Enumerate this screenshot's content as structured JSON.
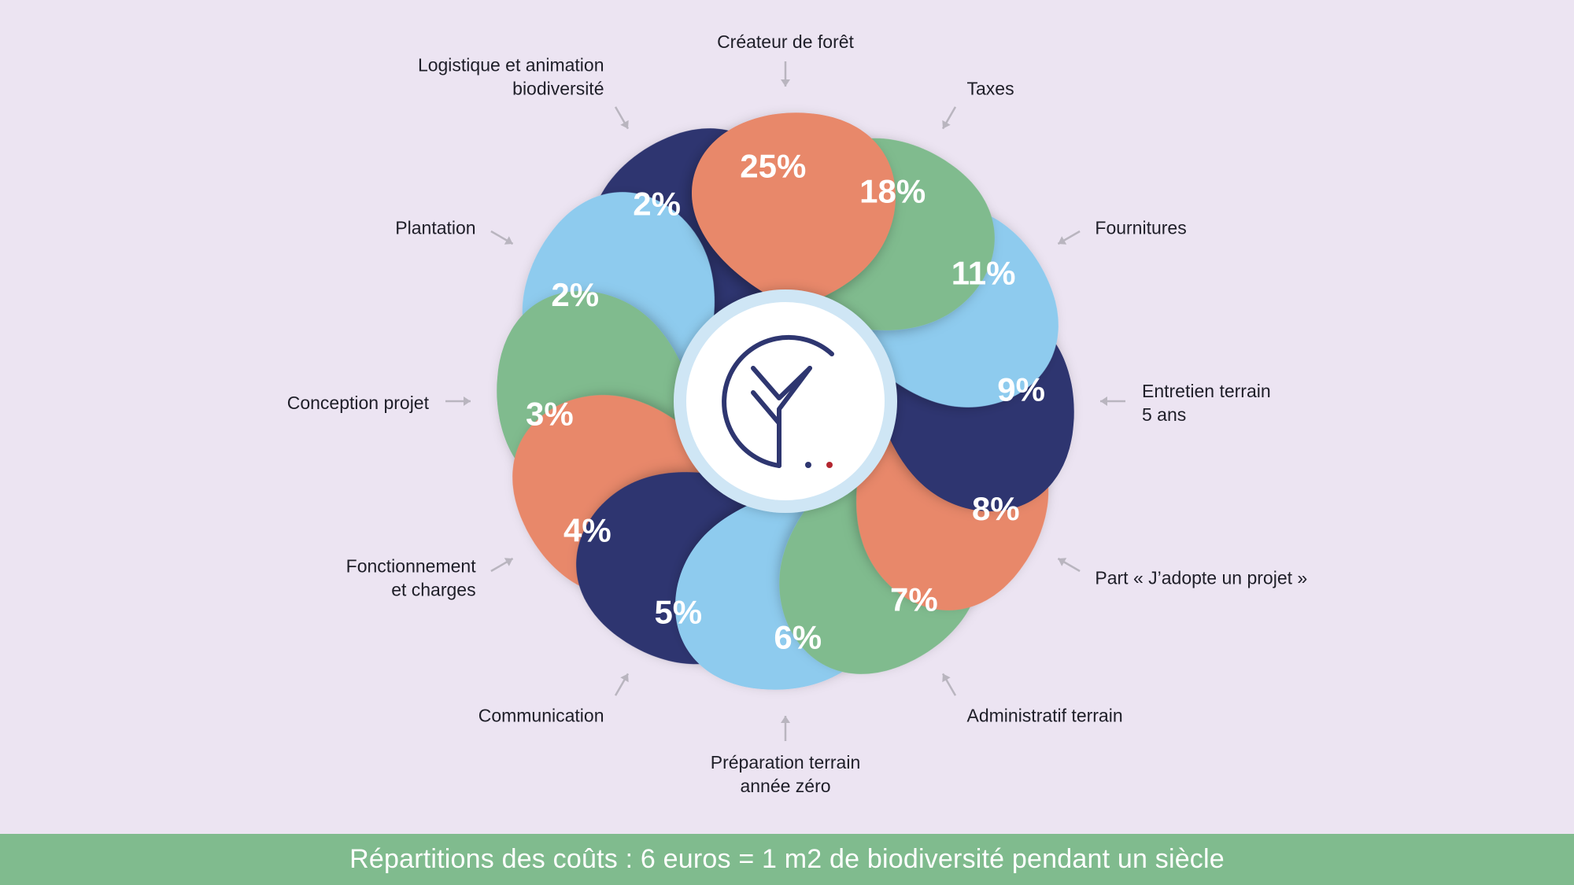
{
  "chart_data": {
    "type": "pie",
    "categories": [
      "Créateur de forêt",
      "Taxes",
      "Fournitures",
      "Entretien terrain\n5 ans",
      "Part « J’adopte un projet »",
      "Administratif terrain",
      "Préparation terrain\nannée zéro",
      "Communication",
      "Fonctionnement\net charges",
      "Conception projet",
      "Plantation",
      "Logistique et animation\nbiodiversité"
    ],
    "values": [
      25,
      18,
      11,
      9,
      8,
      7,
      6,
      5,
      4,
      3,
      2,
      2
    ],
    "value_labels": [
      "25%",
      "18%",
      "11%",
      "9%",
      "8%",
      "7%",
      "6%",
      "5%",
      "4%",
      "3%",
      "2%",
      "2%"
    ],
    "colors": [
      "#e8886a",
      "#80bb8e",
      "#8ecbee",
      "#2e3670",
      "#e8886a",
      "#80bb8e",
      "#8ecbee",
      "#2e3670",
      "#e8886a",
      "#80bb8e",
      "#8ecbee",
      "#2e3670"
    ],
    "title": "Répartitions des coûts : 6 euros = 1 m2 de biodiversité pendant un siècle"
  },
  "footer": {
    "caption": "Répartitions des coûts : 6 euros = 1 m2 de biodiversité pendant un siècle"
  },
  "logo": {
    "icon": "forest-logo-icon",
    "line_color": "#2e3670",
    "dot_colors": [
      "#2e3670",
      "#b3262f"
    ]
  },
  "colors": {
    "background": "#ece4f2",
    "footer": "#80bb8e",
    "arrow": "#b9b5bf",
    "label_text": "#1e1e28",
    "center_ring": "#cfe6f5"
  }
}
